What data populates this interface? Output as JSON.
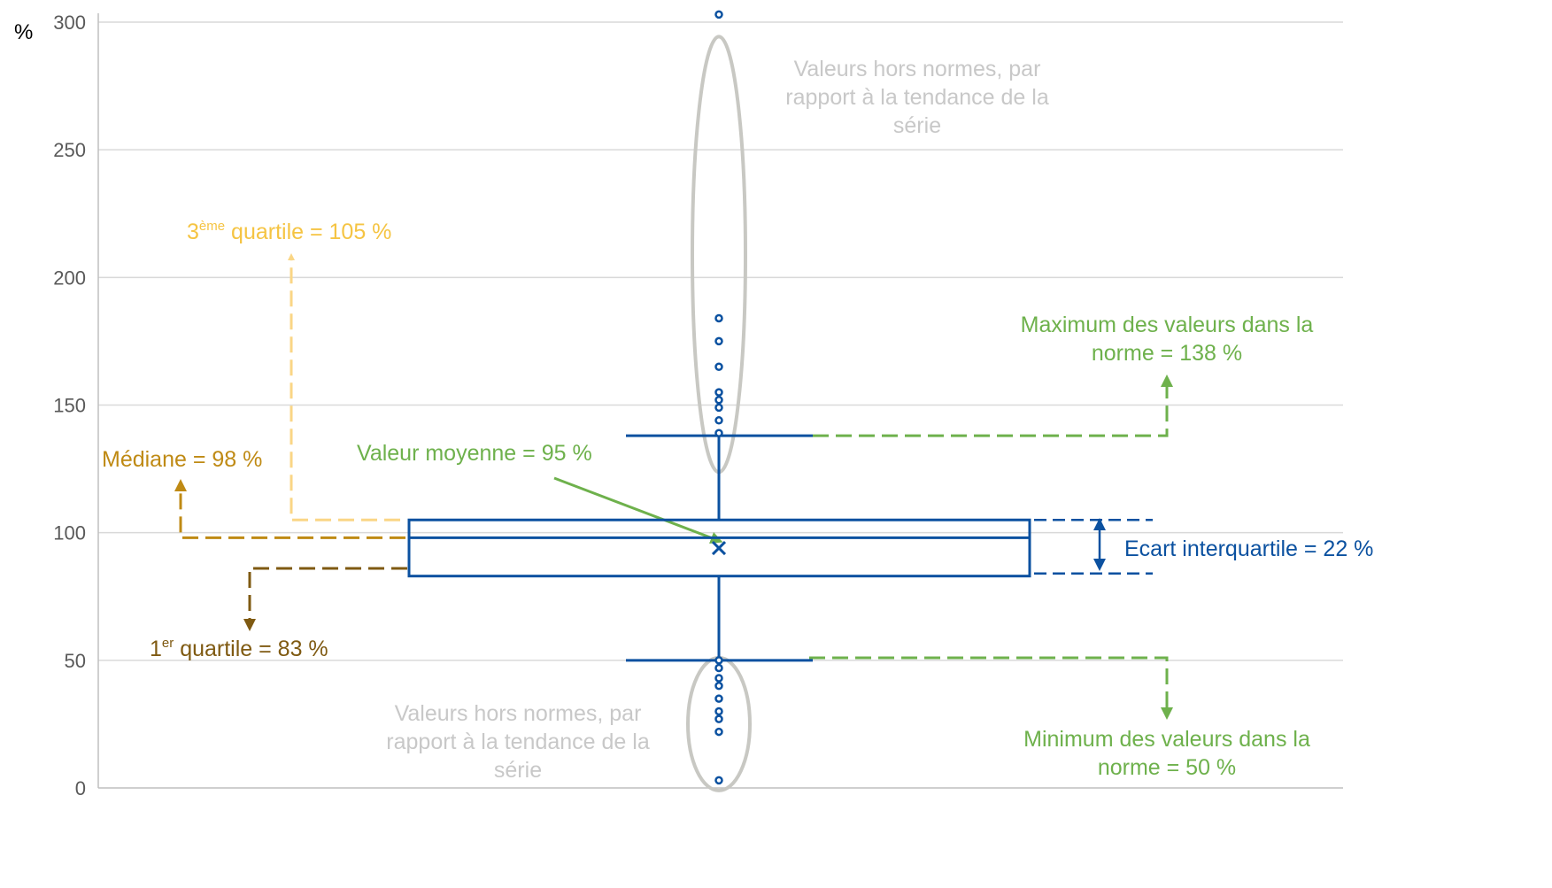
{
  "chart_data": {
    "type": "box",
    "unit": "%",
    "ylim": [
      0,
      300
    ],
    "yticks": [
      0,
      50,
      100,
      150,
      200,
      250,
      300
    ],
    "grid": true,
    "box": {
      "q1": 83,
      "median": 98,
      "q3": 105,
      "mean": 95,
      "whisker_low": 50,
      "whisker_high": 138,
      "iqr": 22
    },
    "outliers_high": [
      139,
      144,
      149,
      152,
      155,
      165,
      175,
      184,
      303
    ],
    "outliers_low": [
      3,
      22,
      27,
      30,
      35,
      40,
      43,
      47,
      50
    ],
    "annotations": {
      "outliers_high": [
        "Valeurs hors normes, par",
        "rapport à la tendance de la",
        "série"
      ],
      "outliers_low": [
        "Valeurs hors normes, par",
        "rapport à la tendance de la",
        "série"
      ],
      "q3": {
        "prefix": "3",
        "sup": "ème",
        "text": " quartile = 105 %"
      },
      "median": "Médiane = 98 %",
      "mean": "Valeur moyenne = 95 %",
      "q1": {
        "prefix": "1",
        "sup": "er",
        "text": " quartile = 83 %"
      },
      "max": [
        "Maximum des valeurs dans la",
        "norme = 138 %"
      ],
      "min": [
        "Minimum des valeurs dans la",
        "norme = 50 %"
      ],
      "iqr": "Ecart interquartile  = 22 %"
    },
    "colors": {
      "box": "#0b51a0",
      "q3": "#f5c443",
      "q3_line": "#fad686",
      "median": "#bf8a14",
      "q1": "#7f5a12",
      "mean": "#6eb14c",
      "minmax": "#6eb14c",
      "outlier_ellipse": "#c8c8c3",
      "outlier_text": "#c8c8c8",
      "grid": "#d9d9d9",
      "axis": "#bfbfbf"
    }
  }
}
